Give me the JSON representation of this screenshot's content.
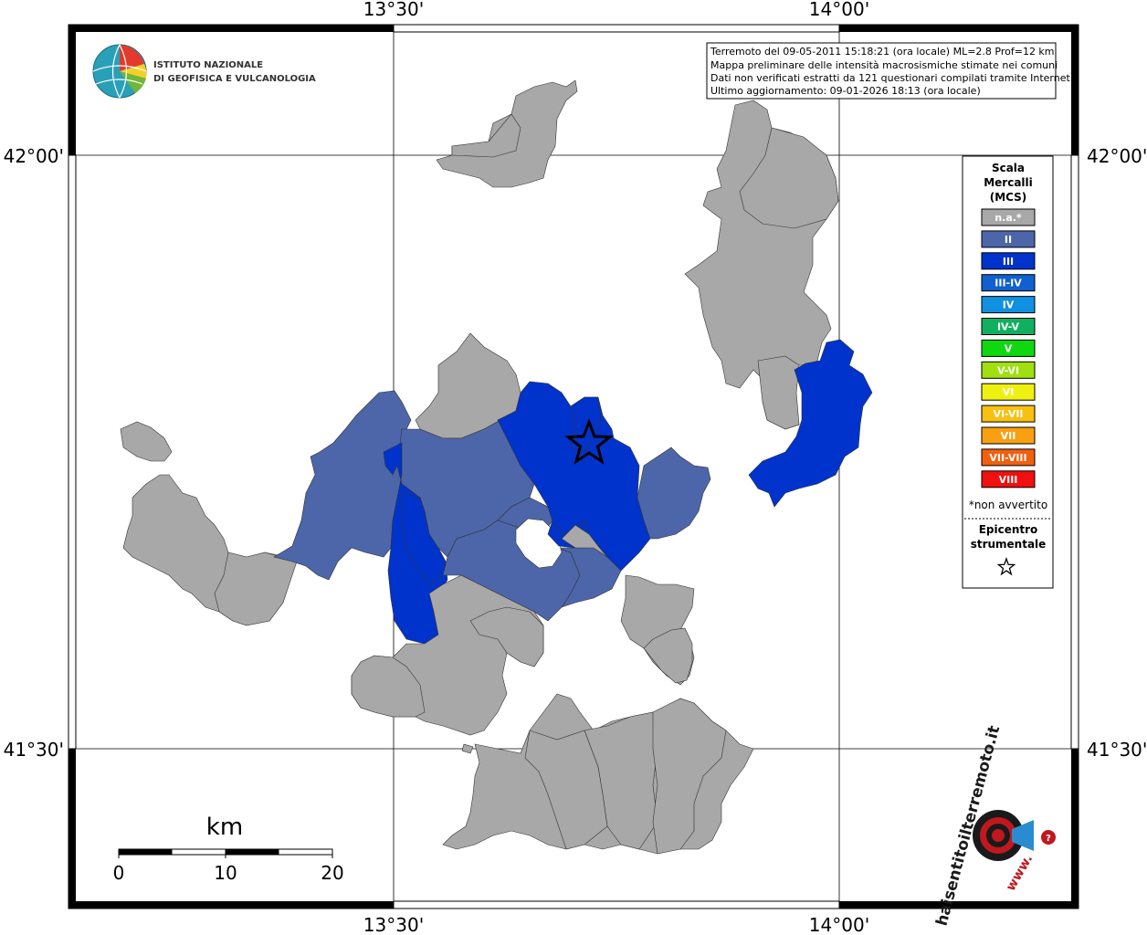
{
  "coords": {
    "top_left_lon": "13°30'",
    "top_right_lon": "14°00'",
    "bottom_left_lon": "13°30'",
    "bottom_right_lon": "14°00'",
    "left_top_lat": "42°00'",
    "left_bottom_lat": "41°30'",
    "right_top_lat": "42°00'",
    "right_bottom_lat": "41°30'"
  },
  "institute": {
    "line1": "ISTITUTO NAZIONALE",
    "line2": "DI GEOFISICA E VULCANOLOGIA"
  },
  "info": {
    "line1": "Terremoto del 09-05-2011 15:18:21 (ora locale) ML=2.8 Prof=12 km",
    "line2": "Mappa preliminare delle intensità macrosismiche stimate nei comuni",
    "line3": "Dati non verificati estratti da 121 questionari compilati tramite Internet.",
    "line4": "Ultimo aggiornamento: 09-01-2026 18:13 (ora locale)"
  },
  "legend": {
    "title1": "Scala",
    "title2": "Mercalli",
    "title3": "(MCS)",
    "items": [
      {
        "label": "n.a.*",
        "color": "#a8a8a8"
      },
      {
        "label": "II",
        "color": "#4d66aa"
      },
      {
        "label": "III",
        "color": "#0033cc"
      },
      {
        "label": "III-IV",
        "color": "#1060d0"
      },
      {
        "label": "IV",
        "color": "#1090e0"
      },
      {
        "label": "IV-V",
        "color": "#10b060"
      },
      {
        "label": "V",
        "color": "#10d810"
      },
      {
        "label": "V-VI",
        "color": "#a0e010"
      },
      {
        "label": "VI",
        "color": "#f0f010"
      },
      {
        "label": "VI-VII",
        "color": "#f8c010"
      },
      {
        "label": "VII",
        "color": "#f8a010"
      },
      {
        "label": "VII-VIII",
        "color": "#f06010"
      },
      {
        "label": "VIII",
        "color": "#f01010"
      }
    ],
    "note": "*non avvertito",
    "epicenter1": "Epicentro",
    "epicenter2": "strumentale"
  },
  "scale": {
    "unit": "km",
    "ticks": [
      "0",
      "10",
      "20"
    ]
  },
  "logo": {
    "text": "haisentitoilterremoto.it",
    "www": "www."
  }
}
